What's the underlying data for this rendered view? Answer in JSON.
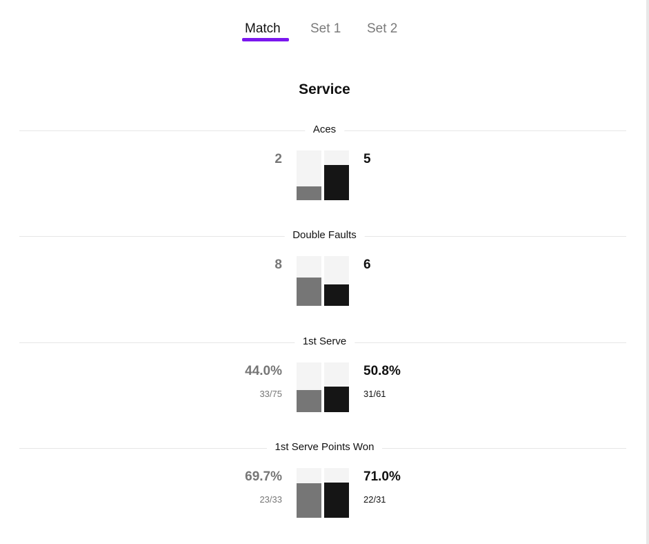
{
  "tabs": [
    {
      "label": "Match",
      "active": true
    },
    {
      "label": "Set 1",
      "active": false
    },
    {
      "label": "Set 2",
      "active": false
    }
  ],
  "accent_color": "#7b17ef",
  "section_title": "Service",
  "stats": [
    {
      "label": "Aces",
      "left": {
        "value": "2",
        "sub": ""
      },
      "right": {
        "value": "5",
        "sub": ""
      },
      "left_fill": 0.28,
      "right_fill": 0.71
    },
    {
      "label": "Double Faults",
      "left": {
        "value": "8",
        "sub": ""
      },
      "right": {
        "value": "6",
        "sub": ""
      },
      "left_fill": 0.57,
      "right_fill": 0.43
    },
    {
      "label": "1st Serve",
      "left": {
        "value": "44.0%",
        "sub": "33/75"
      },
      "right": {
        "value": "50.8%",
        "sub": "31/61"
      },
      "left_fill": 0.44,
      "right_fill": 0.508
    },
    {
      "label": "1st Serve Points Won",
      "left": {
        "value": "69.7%",
        "sub": "23/33"
      },
      "right": {
        "value": "71.0%",
        "sub": "22/31"
      },
      "left_fill": 0.697,
      "right_fill": 0.71
    }
  ]
}
